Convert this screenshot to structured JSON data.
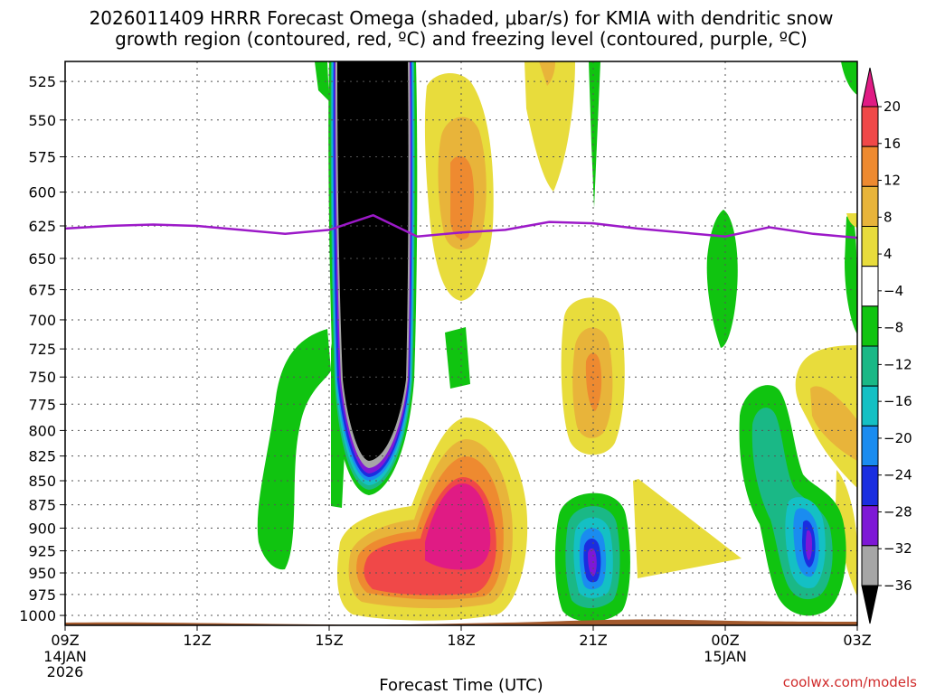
{
  "chart_data": {
    "type": "heatmap",
    "title_line1": "2026011409 HRRR Forecast Omega (shaded, μbar/s) for KMIA with dendritic snow",
    "title_line2": "growth region (contoured, red, ºC) and freezing level (contoured, purple, ºC)",
    "xlabel": "Forecast Time (UTC)",
    "credit": "coolwx.com/models",
    "y_ticks": [
      525,
      550,
      575,
      600,
      625,
      650,
      675,
      700,
      725,
      750,
      775,
      800,
      825,
      850,
      875,
      900,
      925,
      950,
      975,
      1000
    ],
    "y_tick_labels": [
      "525",
      "550",
      "575",
      "600",
      "625",
      "650",
      "675",
      "700",
      "725",
      "750",
      "775",
      "800",
      "825",
      "850",
      "875",
      "900",
      "925",
      "950",
      "975",
      "1000"
    ],
    "x_range_hours": [
      0,
      18
    ],
    "x_ticks": [
      {
        "hour": 0,
        "label": "09Z",
        "sub1": "14JAN",
        "sub2": "2026"
      },
      {
        "hour": 3,
        "label": "12Z",
        "sub1": "",
        "sub2": ""
      },
      {
        "hour": 6,
        "label": "15Z",
        "sub1": "",
        "sub2": ""
      },
      {
        "hour": 9,
        "label": "18Z",
        "sub1": "",
        "sub2": ""
      },
      {
        "hour": 12,
        "label": "21Z",
        "sub1": "",
        "sub2": ""
      },
      {
        "hour": 15,
        "label": "00Z",
        "sub1": "15JAN",
        "sub2": ""
      },
      {
        "hour": 18,
        "label": "03Z",
        "sub1": "",
        "sub2": ""
      }
    ],
    "colorbar": {
      "labels": [
        "20",
        "16",
        "12",
        "8",
        "4",
        "−4",
        "−8",
        "−12",
        "−16",
        "−20",
        "−24",
        "−28",
        "−32",
        "−36"
      ],
      "colors": [
        "#e01b84",
        "#f04848",
        "#ee8a30",
        "#e8b43a",
        "#e8dc3c",
        "#ffffff",
        "#10c410",
        "#1ab886",
        "#14c0c4",
        "#1a8cf0",
        "#1a2ee0",
        "#7e18d6",
        "#a6a6a6",
        "#000000"
      ]
    },
    "freezing_level": {
      "color": "#9c19c8",
      "points": [
        [
          0,
          627
        ],
        [
          1,
          625
        ],
        [
          2,
          624
        ],
        [
          3,
          625
        ],
        [
          4,
          628
        ],
        [
          5,
          631
        ],
        [
          6,
          628
        ],
        [
          7,
          617
        ],
        [
          8,
          633
        ],
        [
          9,
          630
        ],
        [
          10,
          628
        ],
        [
          11,
          622
        ],
        [
          12,
          623
        ],
        [
          13,
          627
        ],
        [
          14,
          630
        ],
        [
          15,
          633
        ],
        [
          16,
          626
        ],
        [
          17,
          631
        ],
        [
          18,
          634
        ]
      ]
    },
    "omega_features": [
      {
        "kind": "column",
        "hour_left": 6.2,
        "hour_right": 7.9,
        "top": 500,
        "bottom": 845,
        "color": "#000000"
      },
      {
        "kind": "blob",
        "hour": 9.0,
        "p": 905,
        "dh": 1.4,
        "dp": 50,
        "color": "#e01b84"
      },
      {
        "kind": "blob",
        "hour": 8.3,
        "p": 935,
        "dh": 2.3,
        "dp": 40,
        "color": "#f04848"
      },
      {
        "kind": "blob",
        "hour": 9.0,
        "p": 615,
        "dh": 0.35,
        "dp": 50,
        "color": "#ee8a30"
      },
      {
        "kind": "blob",
        "hour": 12.0,
        "p": 750,
        "dh": 0.4,
        "dp": 45,
        "color": "#ee8a30"
      },
      {
        "kind": "blob",
        "hour": 12.0,
        "p": 940,
        "dh": 0.45,
        "dp": 40,
        "color": "#7e18d6"
      },
      {
        "kind": "blob",
        "hour": 17.0,
        "p": 925,
        "dh": 0.45,
        "dp": 45,
        "color": "#1a2ee0"
      },
      {
        "kind": "blob",
        "hour": 16.2,
        "p": 830,
        "dh": 0.6,
        "dp": 60,
        "color": "#1ab886"
      }
    ],
    "ground_color": "#a35a2e"
  }
}
